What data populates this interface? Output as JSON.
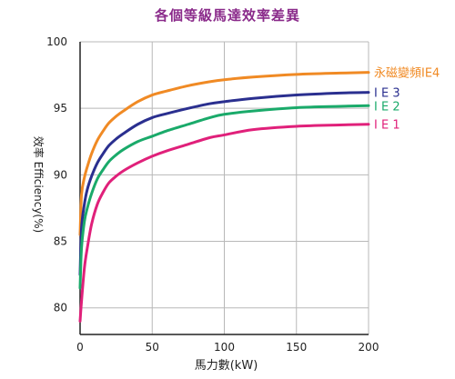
{
  "chart_data": {
    "type": "line",
    "title": "各個等級馬達效率差異",
    "xlabel": "馬力數(kW)",
    "ylabel": "效率 Efficiency(%)",
    "xlim": [
      0,
      200
    ],
    "ylim": [
      78,
      100
    ],
    "xticks": [
      0,
      50,
      100,
      150,
      200
    ],
    "yticks": [
      80,
      85,
      90,
      95,
      100
    ],
    "grid": true,
    "legend_placement": "right, at line ends",
    "series": [
      {
        "name": "永磁變頻IE4",
        "color": "#f08a24",
        "x": [
          0,
          1,
          3,
          5,
          8,
          12,
          16,
          20,
          25,
          30,
          40,
          50,
          60,
          75,
          90,
          100,
          120,
          150,
          180,
          200
        ],
        "y": [
          85.5,
          88.5,
          89.8,
          90.6,
          91.6,
          92.6,
          93.3,
          93.9,
          94.4,
          94.8,
          95.5,
          96.0,
          96.3,
          96.7,
          97.0,
          97.15,
          97.35,
          97.55,
          97.65,
          97.7
        ]
      },
      {
        "name": "I E 3",
        "color": "#2a2f8f",
        "x": [
          0,
          1,
          3,
          5,
          8,
          12,
          16,
          20,
          25,
          30,
          40,
          50,
          60,
          75,
          90,
          100,
          120,
          150,
          180,
          200
        ],
        "y": [
          82.5,
          86.0,
          87.8,
          88.9,
          89.9,
          90.9,
          91.6,
          92.2,
          92.7,
          93.1,
          93.8,
          94.3,
          94.6,
          95.0,
          95.35,
          95.5,
          95.75,
          96.0,
          96.15,
          96.2
        ]
      },
      {
        "name": "I E 2",
        "color": "#1aaa6a",
        "x": [
          0,
          1,
          3,
          5,
          8,
          12,
          16,
          20,
          25,
          30,
          40,
          50,
          60,
          75,
          90,
          100,
          120,
          150,
          180,
          200
        ],
        "y": [
          81.5,
          84.5,
          86.5,
          87.5,
          88.6,
          89.7,
          90.4,
          91.0,
          91.5,
          91.9,
          92.5,
          92.9,
          93.3,
          93.8,
          94.3,
          94.55,
          94.8,
          95.05,
          95.15,
          95.2
        ]
      },
      {
        "name": "I E 1",
        "color": "#e0207a",
        "x": [
          0,
          1,
          3,
          5,
          8,
          12,
          16,
          20,
          25,
          30,
          40,
          50,
          60,
          75,
          90,
          100,
          120,
          150,
          180,
          200
        ],
        "y": [
          79.0,
          80.5,
          83.0,
          84.5,
          86.3,
          87.8,
          88.7,
          89.4,
          89.9,
          90.3,
          90.9,
          91.4,
          91.8,
          92.3,
          92.8,
          93.0,
          93.4,
          93.65,
          93.75,
          93.8
        ]
      }
    ]
  }
}
